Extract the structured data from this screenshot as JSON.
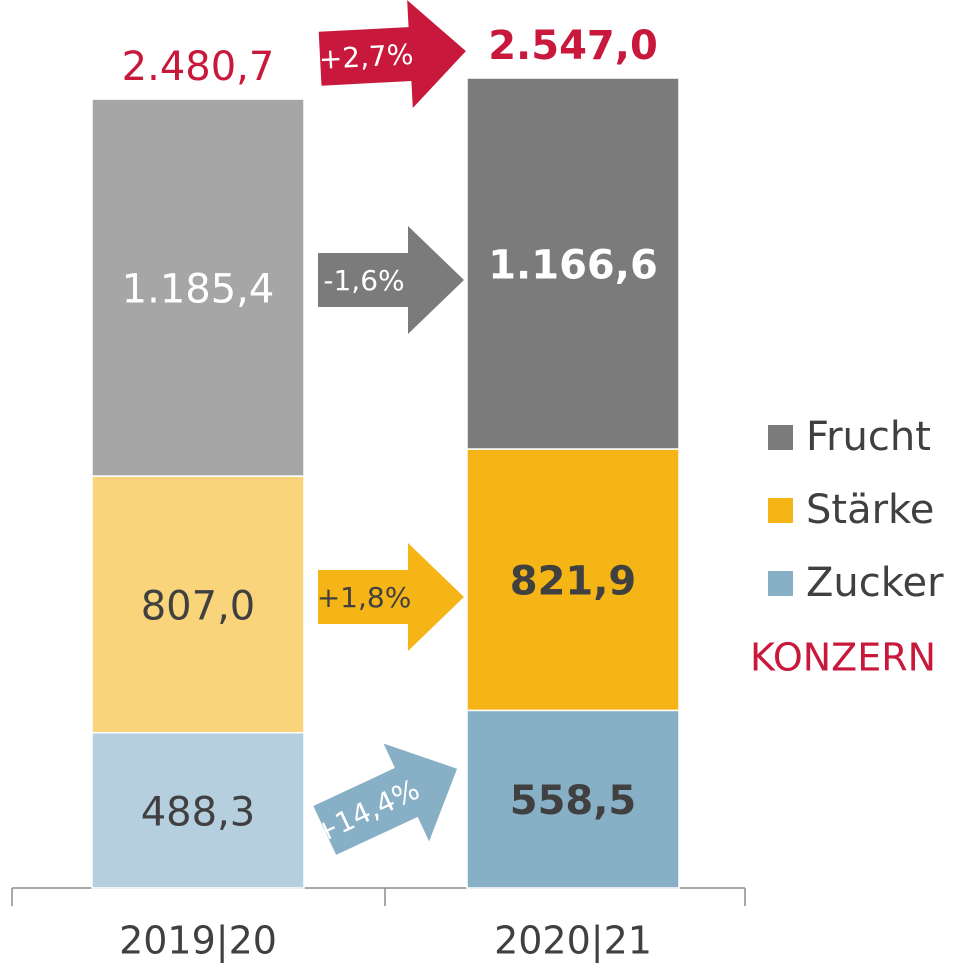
{
  "chart_data": {
    "type": "stacked_bar",
    "categories": [
      "2019|20",
      "2020|21"
    ],
    "series": [
      {
        "name": "Zucker",
        "colors": [
          "#b6cfdf",
          "#87afc6"
        ],
        "values": [
          488.3,
          558.5
        ],
        "value_labels": [
          "488,3",
          "558,5"
        ],
        "change_label": "+14,4%"
      },
      {
        "name": "Stärke",
        "colors": [
          "#f9d47a",
          "#f5b517"
        ],
        "values": [
          807.0,
          821.9
        ],
        "value_labels": [
          "807,0",
          "821,9"
        ],
        "change_label": "+1,8%"
      },
      {
        "name": "Frucht",
        "colors": [
          "#a6a6a6",
          "#7b7b7b"
        ],
        "values": [
          1185.4,
          1166.6
        ],
        "value_labels": [
          "1.185,4",
          "1.166,6"
        ],
        "change_label": "-1,6%"
      }
    ],
    "total": {
      "name": "KONZERN",
      "color": "#c8193c",
      "values": [
        2480.7,
        2547.0
      ],
      "value_labels": [
        "2.480,7",
        "2.547,0"
      ],
      "change_label": "+2,7%"
    }
  }
}
